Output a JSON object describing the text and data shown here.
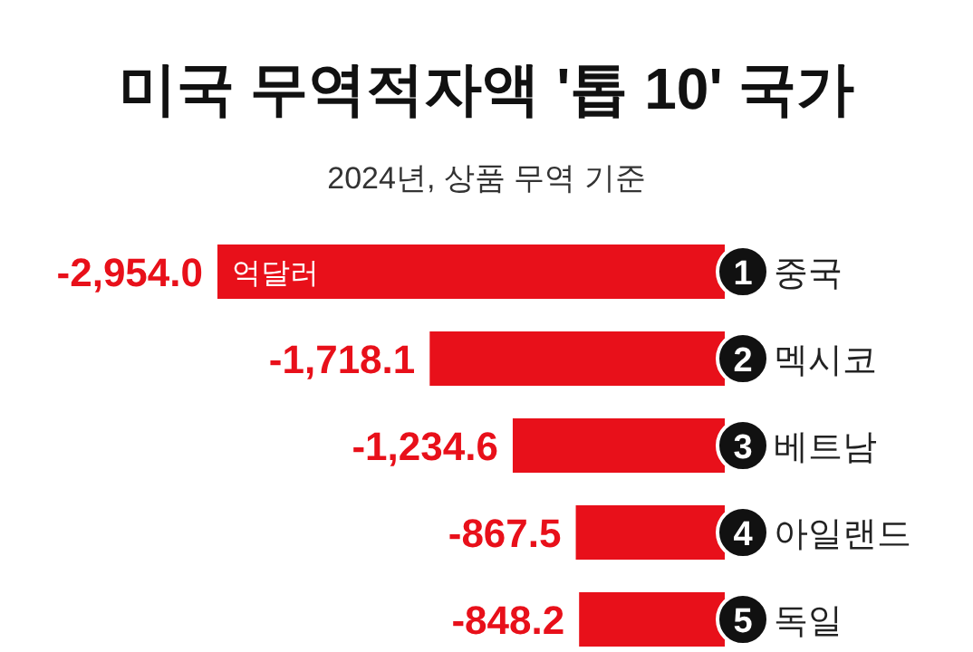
{
  "chart_data": {
    "type": "bar",
    "orientation": "horizontal",
    "title": "미국 무역적자액 '톱 10' 국가",
    "subtitle": "2024년, 상품 무역 기준",
    "categories": [
      "중국",
      "멕시코",
      "베트남",
      "아일랜드",
      "독일"
    ],
    "values": [
      -2954.0,
      -1718.1,
      -1234.6,
      -867.5,
      -848.2
    ],
    "value_labels": [
      "-2,954.0",
      "-1,718.1",
      "-1,234.6",
      "-867.5",
      "-848.2"
    ],
    "color": "#e8101a",
    "annotations": [
      {
        "text": "억달러",
        "x": -2954.0,
        "y": "중국"
      },
      {
        "text": "1",
        "y": "중국"
      },
      {
        "text": "2",
        "y": "멕시코"
      },
      {
        "text": "3",
        "y": "베트남"
      },
      {
        "text": "4",
        "y": "아일랜드"
      },
      {
        "text": "5",
        "y": "독일"
      }
    ]
  }
}
